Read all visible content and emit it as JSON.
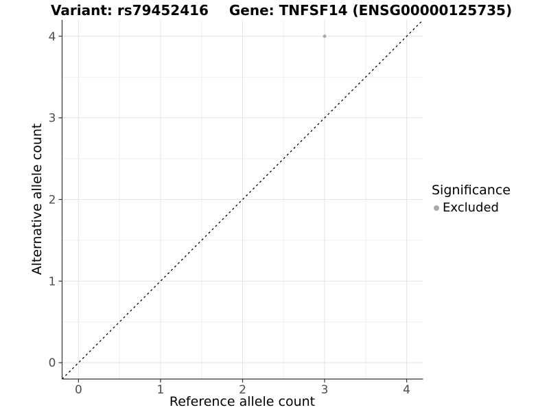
{
  "titles": {
    "variant": "Variant: rs79452416",
    "gene": "Gene: TNFSF14 (ENSG00000125735)"
  },
  "legend": {
    "title": "Significance",
    "items": [
      {
        "label": "Excluded",
        "color": "#aaaaaa"
      }
    ]
  },
  "chart_data": {
    "type": "scatter",
    "title": "Variant: rs79452416 — Gene: TNFSF14 (ENSG00000125735)",
    "xlabel": "Reference allele count",
    "ylabel": "Alternative allele count",
    "xlim": [
      -0.2,
      4.2
    ],
    "ylim": [
      -0.2,
      4.2
    ],
    "x_ticks": [
      0,
      1,
      2,
      3,
      4
    ],
    "y_ticks": [
      0,
      1,
      2,
      3,
      4
    ],
    "grid": {
      "major": true,
      "minor": true
    },
    "legend_position": "right",
    "series": [
      {
        "name": "Excluded",
        "color": "#aaaaaa",
        "points": [
          {
            "x": 3,
            "y": 4
          }
        ]
      }
    ],
    "reference_line": {
      "type": "identity",
      "style": "dashed",
      "color": "#000000"
    }
  },
  "style": {
    "grid_major_color": "#e3e3e3",
    "grid_minor_color": "#efefef",
    "axis_line_color": "#333333",
    "tick_label_color": "#4d4d4d",
    "point_radius": 2.5
  }
}
